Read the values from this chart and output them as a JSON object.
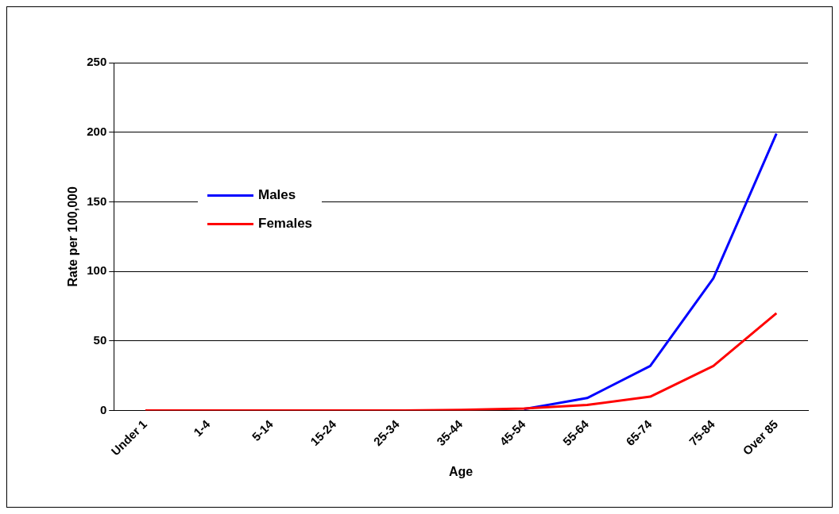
{
  "chart_data": {
    "type": "line",
    "xlabel": "Age",
    "ylabel": "Rate per 100,000",
    "categories": [
      "Under 1",
      "1-4",
      "5-14",
      "15-24",
      "25-34",
      "35-44",
      "45-54",
      "55-64",
      "65-74",
      "75-84",
      "Over 85"
    ],
    "series": [
      {
        "name": "Males",
        "color": "#0000ff",
        "values": [
          null,
          null,
          null,
          null,
          null,
          null,
          1,
          9,
          32,
          95,
          199
        ]
      },
      {
        "name": "Females",
        "color": "#ff0000",
        "values": [
          0,
          0,
          0,
          0,
          0,
          0.5,
          1.5,
          4,
          10,
          32,
          70
        ]
      }
    ],
    "ylim": [
      0,
      250
    ],
    "yticks": [
      0,
      50,
      100,
      150,
      200,
      250
    ],
    "grid": "y",
    "legend": "left",
    "marker": "none",
    "line_style": "solid"
  }
}
